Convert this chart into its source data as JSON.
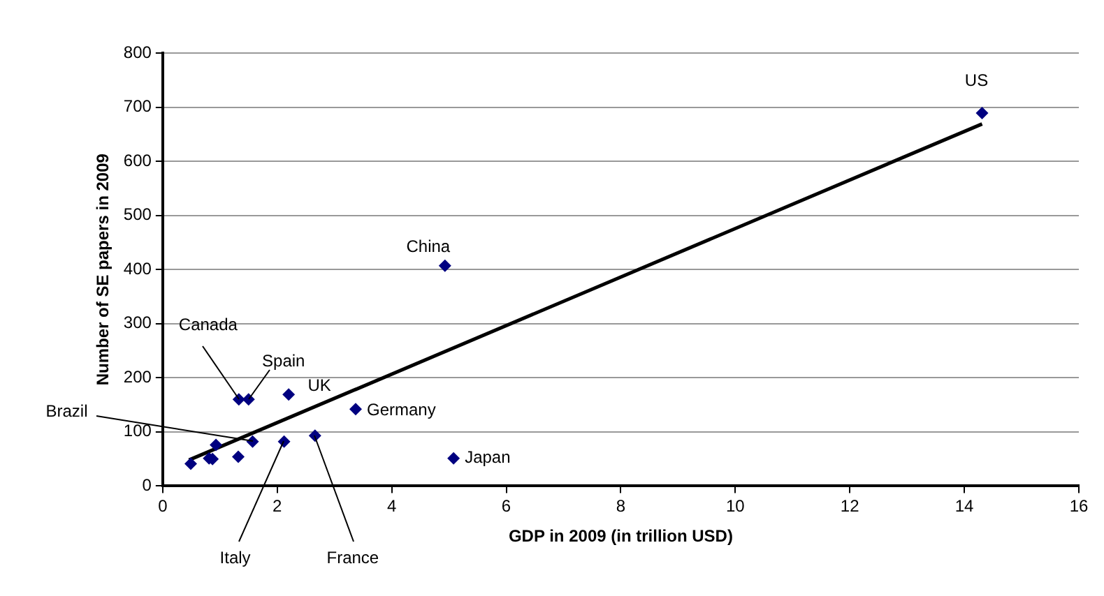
{
  "chart_data": {
    "type": "scatter",
    "xlabel": "GDP in 2009 (in trillion USD)",
    "ylabel": "Number of SE papers in 2009",
    "xlim": [
      0,
      16
    ],
    "xticks": [
      0,
      2,
      4,
      6,
      8,
      10,
      12,
      14,
      16
    ],
    "ylim": [
      0,
      800
    ],
    "yticks": [
      0,
      100,
      200,
      300,
      400,
      500,
      600,
      700,
      800
    ],
    "grid": "y",
    "legend": false,
    "series": [
      {
        "type": "scatter",
        "color": "#000080",
        "marker": "diamond",
        "x": [
          0.49,
          0.81,
          0.87,
          0.93,
          1.32,
          1.33,
          1.5,
          1.57,
          2.2,
          2.12,
          2.66,
          3.37,
          5.08,
          4.93,
          14.31
        ],
        "values": [
          41,
          51,
          50,
          76,
          54,
          160,
          160,
          82,
          169,
          82,
          93,
          142,
          51,
          407,
          689
        ]
      },
      {
        "type": "line",
        "color": "#000000",
        "marker": "none",
        "line_style": "solid",
        "x": [
          0.46,
          14.31
        ],
        "values": [
          48,
          669
        ]
      }
    ],
    "annotations": [
      {
        "text": "US",
        "x": 14.31,
        "y": 689
      },
      {
        "text": "China",
        "x": 4.93,
        "y": 407
      },
      {
        "text": "Canada",
        "x": 1.33,
        "y": 160
      },
      {
        "text": "Spain",
        "x": 1.5,
        "y": 160
      },
      {
        "text": "UK",
        "x": 2.2,
        "y": 169
      },
      {
        "text": "Germany",
        "x": 3.37,
        "y": 142
      },
      {
        "text": "Japan",
        "x": 5.08,
        "y": 51
      },
      {
        "text": "Brazil",
        "x": 1.57,
        "y": 82
      },
      {
        "text": "Italy",
        "x": 2.12,
        "y": 82
      },
      {
        "text": "France",
        "x": 2.66,
        "y": 93
      }
    ]
  }
}
